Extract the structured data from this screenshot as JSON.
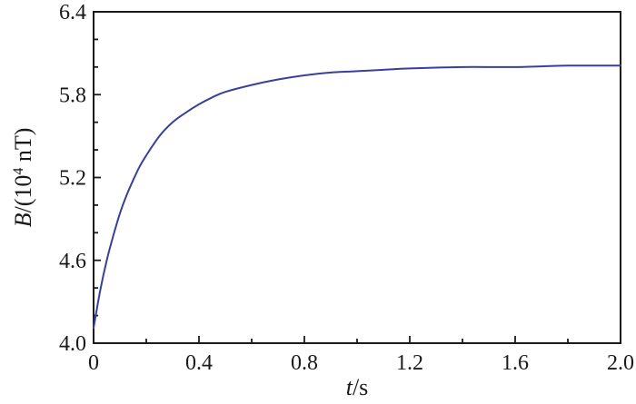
{
  "chart_data": {
    "type": "line",
    "title": "",
    "xlabel": "t/s",
    "ylabel": "B/(10^4 nT)",
    "xlabel_parts": {
      "variable": "t",
      "unit": "/s"
    },
    "ylabel_parts": {
      "variable": "B",
      "prefix": "/(10",
      "superscript": "4",
      "suffix": " nT)"
    },
    "xlim": [
      0,
      2.0
    ],
    "ylim": [
      4.0,
      6.4
    ],
    "x_major_values": [
      0,
      0.4,
      0.8,
      1.2,
      1.6,
      2.0
    ],
    "x_major_labels": [
      "0",
      "0.4",
      "0.8",
      "1.2",
      "1.6",
      "2.0"
    ],
    "x_minor_step": 0.2,
    "y_major_values": [
      4.0,
      4.6,
      5.2,
      5.8,
      6.4
    ],
    "y_major_labels": [
      "4.0",
      "4.6",
      "5.2",
      "5.8",
      "6.4"
    ],
    "y_minor_step": 0.2,
    "grid": false,
    "legend": "none",
    "ticks_direction": "in",
    "colors": {
      "line": "#3a3f9c",
      "axis": "#1a1a1a",
      "text": "#1a1a1a",
      "background": "#ffffff"
    },
    "series": [
      {
        "name": "B(t)",
        "x": [
          0,
          0.025,
          0.05,
          0.075,
          0.1,
          0.125,
          0.15,
          0.175,
          0.2,
          0.25,
          0.3,
          0.35,
          0.4,
          0.45,
          0.5,
          0.6,
          0.7,
          0.8,
          0.9,
          1.0,
          1.1,
          1.2,
          1.4,
          1.6,
          1.8,
          2.0
        ],
        "y": [
          4.11,
          4.38,
          4.6,
          4.78,
          4.94,
          5.07,
          5.18,
          5.28,
          5.36,
          5.5,
          5.6,
          5.67,
          5.73,
          5.78,
          5.82,
          5.87,
          5.91,
          5.94,
          5.96,
          5.97,
          5.98,
          5.99,
          6.0,
          6.0,
          6.01,
          6.01
        ]
      }
    ]
  }
}
